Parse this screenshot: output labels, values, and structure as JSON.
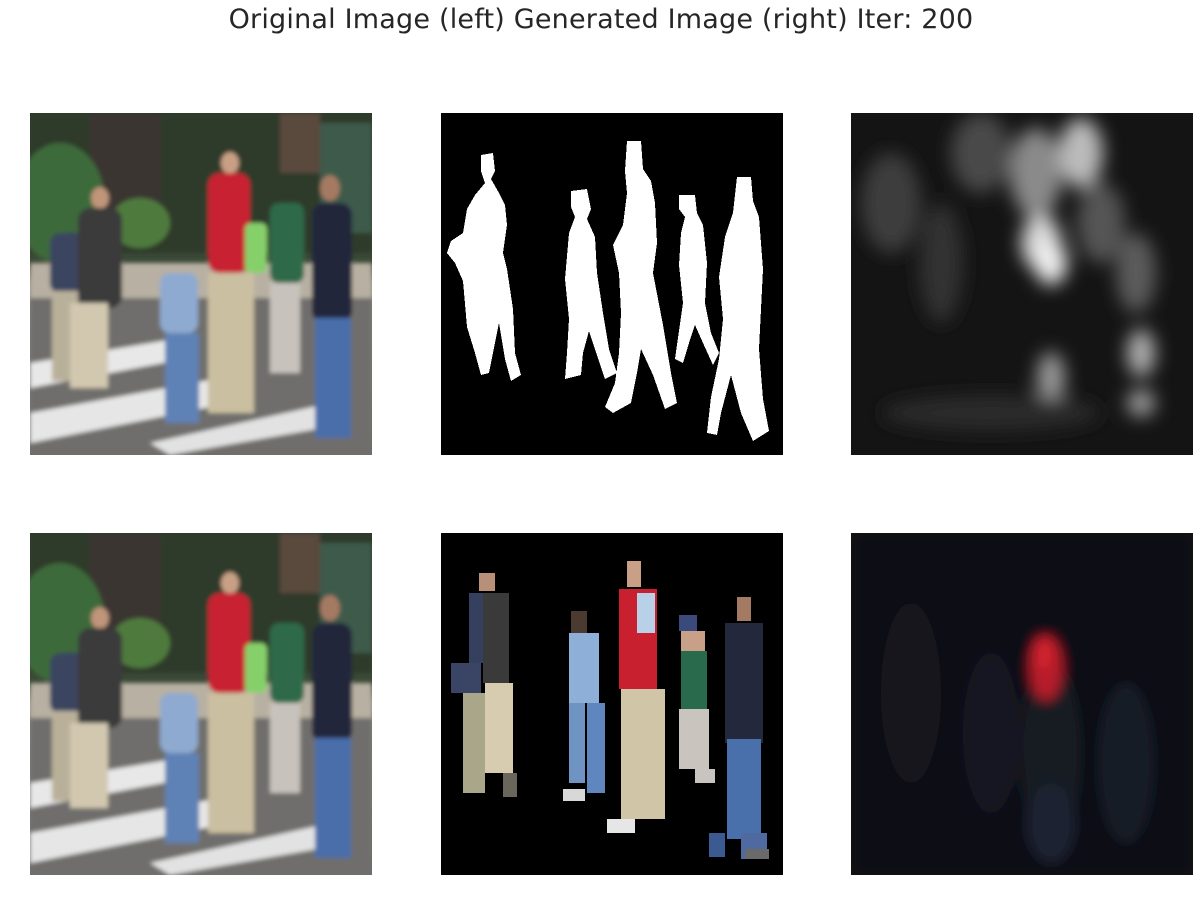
{
  "figure": {
    "title": "Original Image (left) Generated Image (right) Iter: 200"
  },
  "colors": {
    "background": "#ffffff",
    "title_text": "#262626",
    "mask_foreground": "#ffffff",
    "mask_background": "#000000",
    "highlight_red": "#c8202e"
  }
}
